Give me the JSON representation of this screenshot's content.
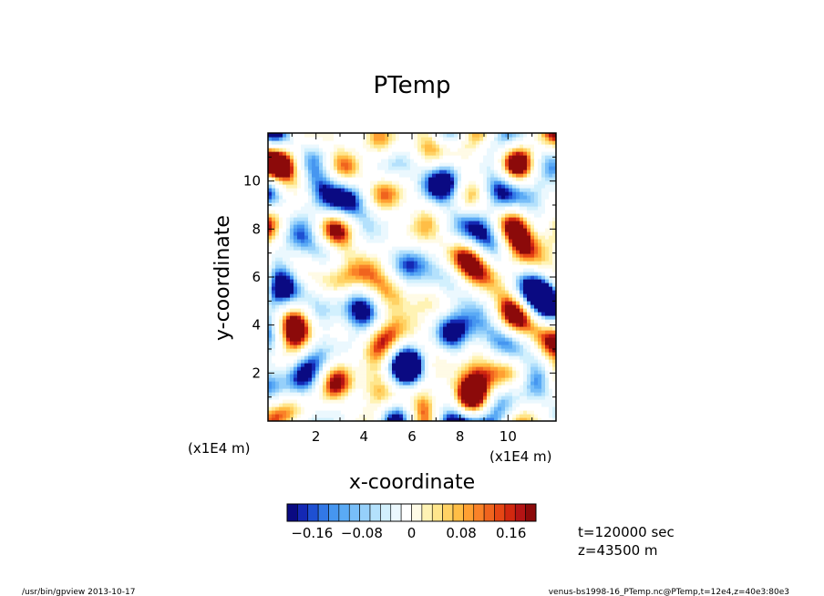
{
  "chart_data": {
    "type": "heatmap",
    "title": "PTemp",
    "xlabel": "x-coordinate",
    "ylabel": "y-coordinate",
    "x_scale_label": "(x1E4 m)",
    "y_scale_label": "(x1E4 m)",
    "xlim": [
      0,
      12
    ],
    "ylim": [
      0,
      12
    ],
    "xticks": [
      {
        "value": 2,
        "label": "2"
      },
      {
        "value": 4,
        "label": "4"
      },
      {
        "value": 6,
        "label": "6"
      },
      {
        "value": 8,
        "label": "8"
      },
      {
        "value": 10,
        "label": "10"
      }
    ],
    "yticks": [
      {
        "value": 2,
        "label": "2"
      },
      {
        "value": 4,
        "label": "4"
      },
      {
        "value": 6,
        "label": "6"
      },
      {
        "value": 8,
        "label": "8"
      },
      {
        "value": 10,
        "label": "10"
      }
    ],
    "colorbar": {
      "min": -0.2,
      "max": 0.2,
      "tick_labels": [
        {
          "value": -0.16,
          "label": "−0.16"
        },
        {
          "value": -0.08,
          "label": "−0.08"
        },
        {
          "value": 0,
          "label": "0"
        },
        {
          "value": 0.08,
          "label": "0.08"
        },
        {
          "value": 0.16,
          "label": "0.16"
        }
      ],
      "colors": [
        "#0a0a82",
        "#1428b4",
        "#1e50d2",
        "#3278e6",
        "#4696f0",
        "#5aaaf5",
        "#78bef8",
        "#96d0fa",
        "#b4e1fc",
        "#d2f0fd",
        "#ebf8fe",
        "#ffffff",
        "#fffbe6",
        "#fff3b4",
        "#ffe68c",
        "#ffd264",
        "#ffbe46",
        "#ffa032",
        "#fa8228",
        "#f0641e",
        "#e64614",
        "#d2280f",
        "#b41414",
        "#8c0a0a"
      ]
    },
    "field_note_values": {
      "typical_range": [
        -0.2,
        0.2
      ],
      "dominant": "near-zero perturbations (light blue / pale yellow) with scattered small-scale extrema"
    }
  },
  "info": {
    "time": "t=120000 sec",
    "height": "z=43500 m"
  },
  "footer": {
    "left": "/usr/bin/gpview   2013-10-17",
    "right": "venus-bs1998-16_PTemp.nc@PTemp,t=12e4,z=40e3:80e3"
  }
}
